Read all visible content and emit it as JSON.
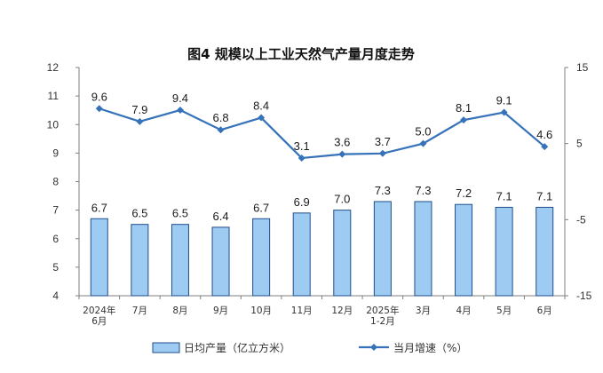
{
  "chart_data": {
    "type": "bar+line",
    "title": "图4  规模以上工业天然气产量月度走势",
    "categories": [
      [
        "2024年",
        "6月"
      ],
      [
        "7月"
      ],
      [
        "8月"
      ],
      [
        "9月"
      ],
      [
        "10月"
      ],
      [
        "11月"
      ],
      [
        "12月"
      ],
      [
        "2025年",
        "1-2月"
      ],
      [
        "3月"
      ],
      [
        "4月"
      ],
      [
        "5月"
      ],
      [
        "6月"
      ]
    ],
    "series": [
      {
        "name": "日均产量（亿立方米）",
        "type": "bar",
        "axis": "left",
        "values": [
          6.7,
          6.5,
          6.5,
          6.4,
          6.7,
          6.9,
          7.0,
          7.3,
          7.3,
          7.2,
          7.1,
          7.1
        ],
        "labels": [
          "6.7",
          "6.5",
          "6.5",
          "6.4",
          "6.7",
          "6.9",
          "7.0",
          "7.3",
          "7.3",
          "7.2",
          "7.1",
          "7.1"
        ],
        "color": "#9ecbf2",
        "border": "#1f4e8c"
      },
      {
        "name": "当月增速（%）",
        "type": "line",
        "axis": "right",
        "values": [
          9.6,
          7.9,
          9.4,
          6.8,
          8.4,
          3.1,
          3.6,
          3.7,
          5.0,
          8.1,
          9.1,
          4.6
        ],
        "labels": [
          "9.6",
          "7.9",
          "9.4",
          "6.8",
          "8.4",
          "3.1",
          "3.6",
          "3.7",
          "5.0",
          "8.1",
          "9.1",
          "4.6"
        ],
        "color": "#3572b9"
      }
    ],
    "y_left": {
      "min": 4,
      "max": 12,
      "ticks": [
        "4",
        "5",
        "6",
        "7",
        "8",
        "9",
        "10",
        "11",
        "12"
      ]
    },
    "y_right": {
      "min": -15,
      "max": 15,
      "ticks": [
        "-15",
        "-5",
        "5",
        "15"
      ]
    },
    "grid": false,
    "legend": "bottom"
  }
}
